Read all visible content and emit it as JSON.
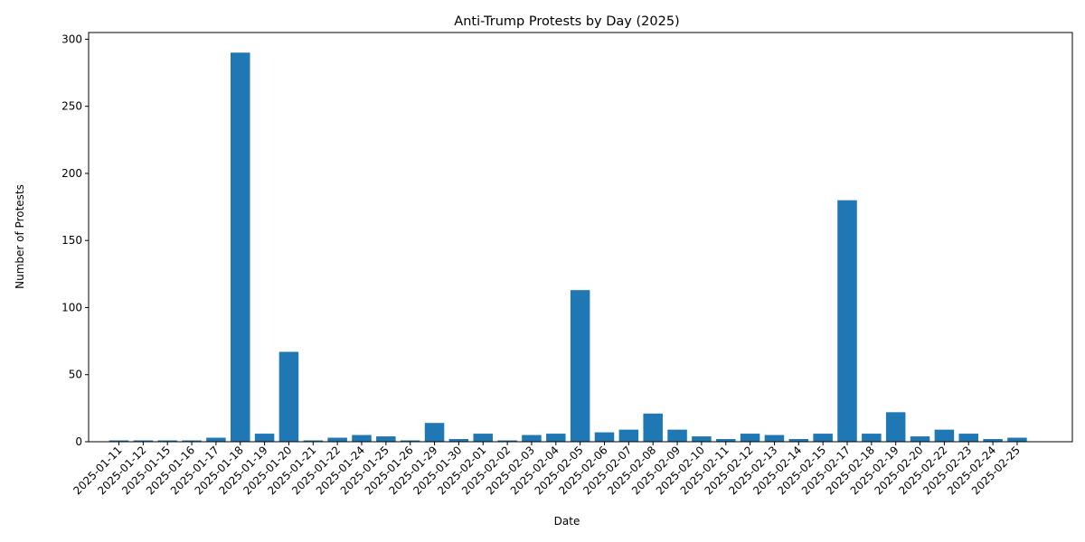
{
  "chart_data": {
    "type": "bar",
    "title": "Anti-Trump Protests by Day (2025)",
    "xlabel": "Date",
    "ylabel": "Number of Protests",
    "ylim": [
      0,
      305
    ],
    "yticks": [
      0,
      50,
      100,
      150,
      200,
      250,
      300
    ],
    "grid": false,
    "color": "#1f77b4",
    "categories": [
      "2025-01-11",
      "2025-01-12",
      "2025-01-15",
      "2025-01-16",
      "2025-01-17",
      "2025-01-18",
      "2025-01-19",
      "2025-01-20",
      "2025-01-21",
      "2025-01-22",
      "2025-01-24",
      "2025-01-25",
      "2025-01-26",
      "2025-01-29",
      "2025-01-30",
      "2025-02-01",
      "2025-02-02",
      "2025-02-03",
      "2025-02-04",
      "2025-02-05",
      "2025-02-06",
      "2025-02-07",
      "2025-02-08",
      "2025-02-09",
      "2025-02-10",
      "2025-02-11",
      "2025-02-12",
      "2025-02-13",
      "2025-02-14",
      "2025-02-15",
      "2025-02-17",
      "2025-02-18",
      "2025-02-19",
      "2025-02-20",
      "2025-02-22",
      "2025-02-23",
      "2025-02-24",
      "2025-02-25"
    ],
    "values": [
      1,
      1,
      1,
      1,
      3,
      290,
      6,
      67,
      1,
      3,
      5,
      4,
      1,
      14,
      2,
      6,
      1,
      5,
      6,
      113,
      7,
      9,
      21,
      9,
      4,
      2,
      6,
      5,
      2,
      6,
      180,
      6,
      22,
      4,
      9,
      6,
      2,
      3
    ]
  }
}
